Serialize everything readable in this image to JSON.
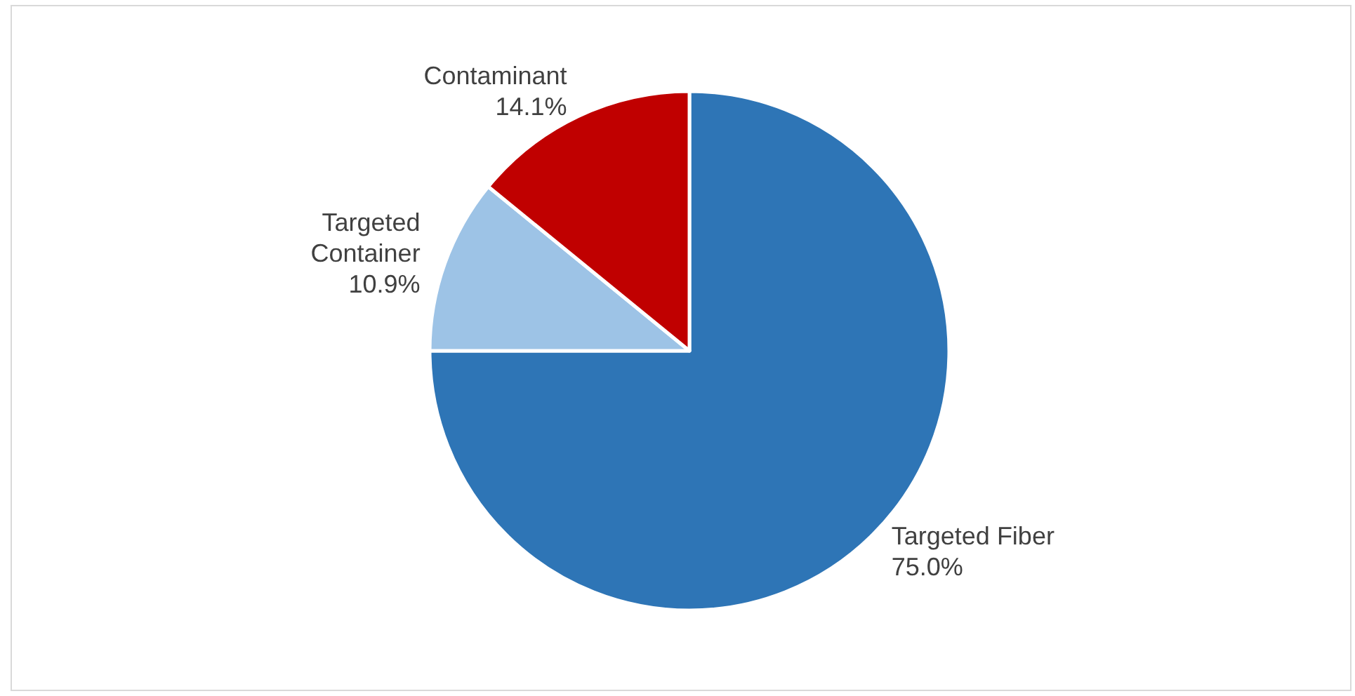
{
  "chart_data": {
    "type": "pie",
    "categories": [
      "Targeted Fiber",
      "Targeted Container",
      "Contaminant"
    ],
    "values": [
      75.0,
      10.9,
      14.1
    ],
    "colors": [
      "#2e75b6",
      "#9dc3e6",
      "#c00000"
    ],
    "value_labels": [
      "75.0%",
      "10.9%",
      "14.1%"
    ]
  }
}
